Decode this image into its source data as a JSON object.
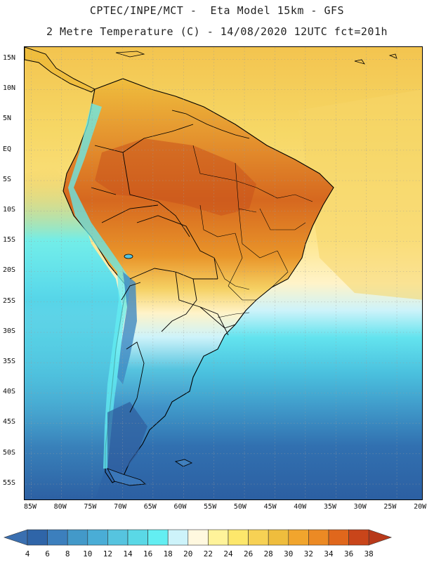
{
  "title": {
    "line1": "CPTEC/INPE/MCT -  Eta Model 15km - GFS",
    "line2": "2 Metre Temperature (C) - 14/08/2020 12UTC fct=201h"
  },
  "map": {
    "region": "South America",
    "variable": "2 Metre Temperature",
    "units": "C",
    "lat_labels": [
      "15N",
      "10N",
      "5N",
      "EQ",
      "5S",
      "10S",
      "15S",
      "20S",
      "25S",
      "30S",
      "35S",
      "40S",
      "45S",
      "50S",
      "55S"
    ],
    "lon_labels": [
      "85W",
      "80W",
      "75W",
      "70W",
      "65W",
      "60W",
      "55W",
      "50W",
      "45W",
      "40W",
      "35W",
      "30W",
      "25W",
      "20W"
    ],
    "graticule": "dotted",
    "features": [
      "country-borders",
      "coastlines",
      "state-borders-brazil",
      "lakes"
    ]
  },
  "colorbar": {
    "labels": [
      "4",
      "6",
      "8",
      "10",
      "12",
      "14",
      "16",
      "18",
      "20",
      "22",
      "24",
      "26",
      "28",
      "30",
      "32",
      "34",
      "36",
      "38"
    ],
    "colors": [
      "#2f65a8",
      "#3c7fbd",
      "#4399c9",
      "#4aadd6",
      "#56c4df",
      "#5ad8e6",
      "#63eef2",
      "#cdf3fa",
      "#fff8df",
      "#fff39a",
      "#fde76b",
      "#f7d154",
      "#efbd3d",
      "#f1a52d",
      "#ec8a24",
      "#e0671c",
      "#c9451a"
    ],
    "under_color": "#3a6fb0",
    "over_color": "#b8391a"
  },
  "palette": {
    "background": "#ffffff",
    "ocean_cold": "#2f65a8",
    "ocean_mid": "#4fc0dd",
    "ocean_warm": "#f2cb5d",
    "land_hot": "#d9711f",
    "land_very_hot": "#c35a1d",
    "border": "#000000"
  }
}
